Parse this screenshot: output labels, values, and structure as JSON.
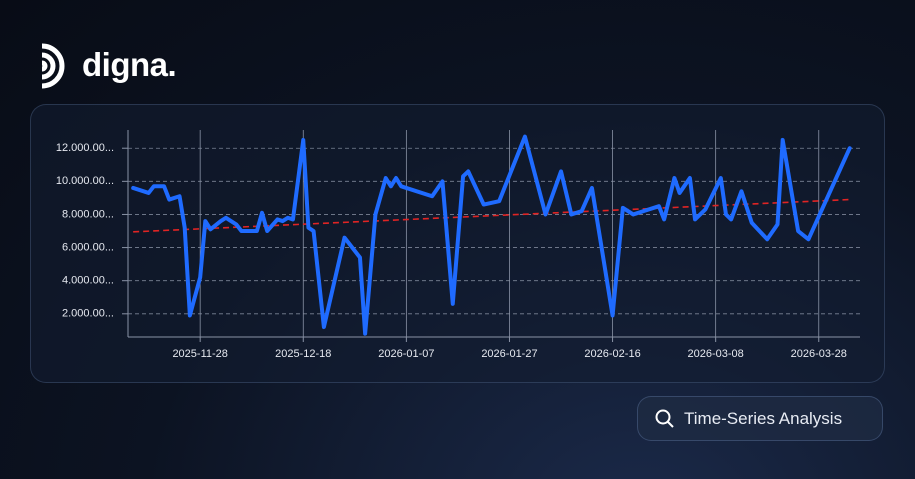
{
  "brand": "digna.",
  "badge": "Time-Series Analysis",
  "chart_data": {
    "type": "line",
    "x": [
      "2025-11-15",
      "2025-11-18",
      "2025-11-19",
      "2025-11-21",
      "2025-11-22",
      "2025-11-24",
      "2025-11-25",
      "2025-11-26",
      "2025-11-28",
      "2025-11-29",
      "2025-11-30",
      "2025-12-02",
      "2025-12-03",
      "2025-12-05",
      "2025-12-06",
      "2025-12-09",
      "2025-12-10",
      "2025-12-11",
      "2025-12-13",
      "2025-12-14",
      "2025-12-15",
      "2025-12-16",
      "2025-12-18",
      "2025-12-19",
      "2025-12-20",
      "2025-12-22",
      "2025-12-26",
      "2025-12-29",
      "2025-12-30",
      "2026-01-01",
      "2026-01-03",
      "2026-01-04",
      "2026-01-05",
      "2026-01-06",
      "2026-01-12",
      "2026-01-14",
      "2026-01-16",
      "2026-01-18",
      "2026-01-19",
      "2026-01-22",
      "2026-01-25",
      "2026-01-30",
      "2026-02-03",
      "2026-02-06",
      "2026-02-08",
      "2026-02-10",
      "2026-02-12",
      "2026-02-16",
      "2026-02-18",
      "2026-02-20",
      "2026-02-22",
      "2026-02-25",
      "2026-02-26",
      "2026-02-28",
      "2026-03-01",
      "2026-03-03",
      "2026-03-04",
      "2026-03-06",
      "2026-03-09",
      "2026-03-10",
      "2026-03-11",
      "2026-03-13",
      "2026-03-15",
      "2026-03-18",
      "2026-03-20",
      "2026-03-21",
      "2026-03-24",
      "2026-03-26",
      "2026-04-03"
    ],
    "series": [
      {
        "color": "#1f6bff",
        "values": [
          9600,
          9300,
          9700,
          9700,
          8900,
          9100,
          7200,
          1900,
          4200,
          7600,
          7100,
          7600,
          7800,
          7400,
          7000,
          7000,
          8100,
          7000,
          7700,
          7600,
          7800,
          7700,
          12500,
          7200,
          7000,
          1200,
          6600,
          5400,
          800,
          8000,
          10200,
          9700,
          10200,
          9700,
          9100,
          10000,
          2600,
          10300,
          10600,
          8600,
          8800,
          12700,
          8000,
          10600,
          8000,
          8200,
          9600,
          1900,
          8400,
          8000,
          8200,
          8500,
          7700,
          10200,
          9300,
          10200,
          7700,
          8300,
          10200,
          8000,
          7700,
          9400,
          7500,
          6500,
          7400,
          12500,
          7000,
          6500,
          12000
        ]
      }
    ],
    "trend": {
      "color": "#e02424",
      "x": [
        "2025-11-15",
        "2026-04-03"
      ],
      "values": [
        6950,
        8900
      ]
    },
    "xlim": [
      "2025-11-14",
      "2026-04-05"
    ],
    "xticks": [
      "2025-11-28",
      "2025-12-18",
      "2026-01-07",
      "2026-01-27",
      "2026-02-16",
      "2026-03-08",
      "2026-03-28"
    ],
    "ylim": [
      600,
      13100
    ],
    "yticks": [
      {
        "value": 2000,
        "label": "2.000.00..."
      },
      {
        "value": 4000,
        "label": "4.000.00..."
      },
      {
        "value": 6000,
        "label": "6.000.00..."
      },
      {
        "value": 8000,
        "label": "8.000.00..."
      },
      {
        "value": 10000,
        "label": "10.000.00..."
      },
      {
        "value": 12000,
        "label": "12.000.00..."
      }
    ],
    "grid": true
  }
}
